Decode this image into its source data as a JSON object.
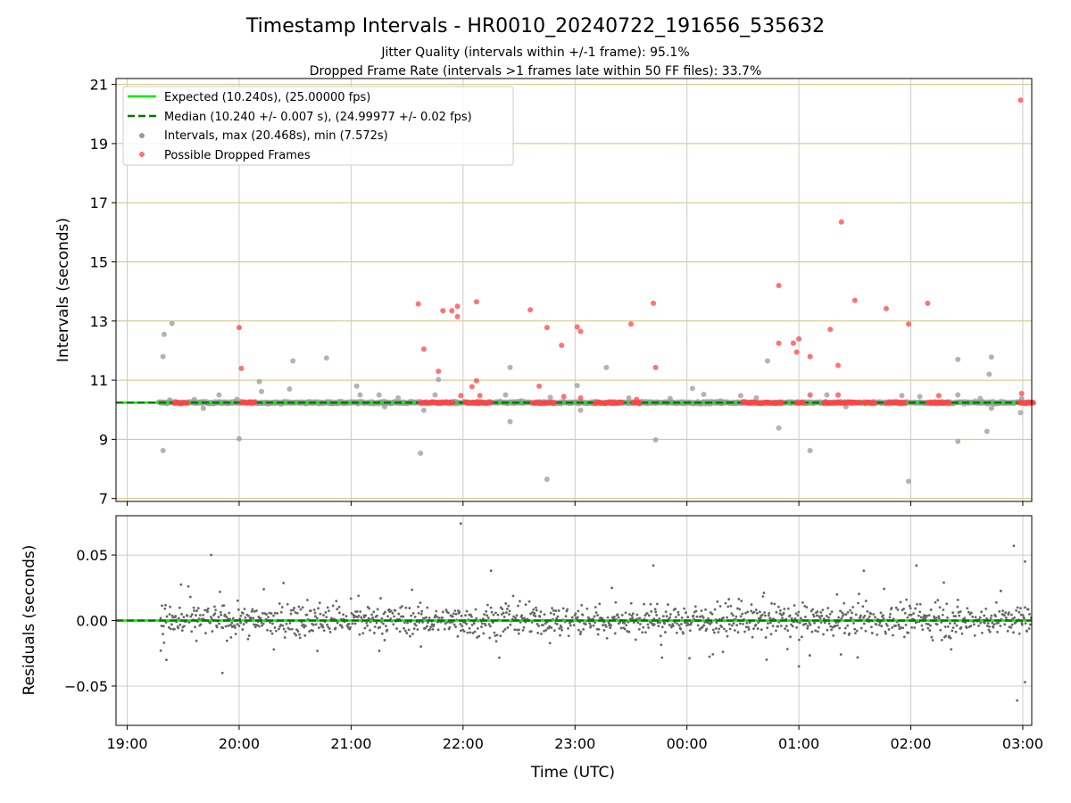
{
  "chart_data": [
    {
      "type": "scatter",
      "title": "Timestamp Intervals - HR0010_20240722_191656_535632",
      "subtitle_lines": [
        "Jitter Quality (intervals within +/-1 frame): 95.1%",
        "Dropped Frame Rate (intervals >1 frames late within 50 FF files): 33.7%"
      ],
      "ylabel": "Intervals (seconds)",
      "ylim": [
        6.9,
        21.2
      ],
      "yticks": [
        7,
        9,
        11,
        13,
        15,
        17,
        19,
        21
      ],
      "ytick_labels": [
        "7",
        "9",
        "11",
        "13",
        "15",
        "17",
        "19",
        "21"
      ],
      "xlim": [
        -0.1,
        8.08
      ],
      "xticks": [
        0,
        1,
        2,
        3,
        4,
        5,
        6,
        7,
        8
      ],
      "grid": true,
      "legend_position": "upper-left",
      "legend": [
        "Expected (10.240s), (25.00000 fps)",
        "Median (10.240 +/- 0.007 s), (24.99977 +/- 0.02 fps)",
        "Intervals, max (20.468s), min (7.572s)",
        "Possible Dropped Frames"
      ],
      "expected": 10.24,
      "median": 10.24,
      "band_runs": [
        [
          0.28,
          8.1
        ]
      ],
      "dropped_runs": [
        [
          0.42,
          0.55
        ],
        [
          1.02,
          1.15
        ],
        [
          2.62,
          2.92
        ],
        [
          3.02,
          3.25
        ],
        [
          3.62,
          3.82
        ],
        [
          4.18,
          4.42
        ],
        [
          4.52,
          4.58
        ],
        [
          5.5,
          5.85
        ],
        [
          5.98,
          6.05
        ],
        [
          6.22,
          6.55
        ],
        [
          6.58,
          6.68
        ],
        [
          6.78,
          6.95
        ],
        [
          7.15,
          7.35
        ],
        [
          7.97,
          8.1
        ]
      ],
      "points": [
        {
          "x": 0.32,
          "y": 8.62
        },
        {
          "x": 0.32,
          "y": 11.8
        },
        {
          "x": 0.33,
          "y": 12.55
        },
        {
          "x": 0.4,
          "y": 12.92
        },
        {
          "x": 0.38,
          "y": 10.33
        },
        {
          "x": 0.6,
          "y": 10.35
        },
        {
          "x": 0.68,
          "y": 10.05
        },
        {
          "x": 0.82,
          "y": 10.5
        },
        {
          "x": 0.98,
          "y": 10.35
        },
        {
          "x": 1.0,
          "y": 9.02
        },
        {
          "x": 1.18,
          "y": 10.95
        },
        {
          "x": 1.2,
          "y": 10.62
        },
        {
          "x": 1.45,
          "y": 10.7
        },
        {
          "x": 1.48,
          "y": 11.65
        },
        {
          "x": 1.78,
          "y": 11.75
        },
        {
          "x": 2.05,
          "y": 10.8
        },
        {
          "x": 2.08,
          "y": 10.5
        },
        {
          "x": 2.25,
          "y": 10.5
        },
        {
          "x": 2.3,
          "y": 10.1
        },
        {
          "x": 2.42,
          "y": 10.4
        },
        {
          "x": 2.62,
          "y": 8.53
        },
        {
          "x": 2.65,
          "y": 9.98
        },
        {
          "x": 2.75,
          "y": 10.5
        },
        {
          "x": 2.78,
          "y": 11.02
        },
        {
          "x": 3.38,
          "y": 10.5
        },
        {
          "x": 3.42,
          "y": 9.6
        },
        {
          "x": 3.42,
          "y": 11.43
        },
        {
          "x": 3.52,
          "y": 10.3
        },
        {
          "x": 3.75,
          "y": 7.65
        },
        {
          "x": 3.78,
          "y": 10.42
        },
        {
          "x": 4.02,
          "y": 10.82
        },
        {
          "x": 4.05,
          "y": 9.98
        },
        {
          "x": 4.28,
          "y": 11.43
        },
        {
          "x": 4.48,
          "y": 10.4
        },
        {
          "x": 4.72,
          "y": 8.98
        },
        {
          "x": 4.85,
          "y": 10.38
        },
        {
          "x": 5.05,
          "y": 10.72
        },
        {
          "x": 5.15,
          "y": 10.52
        },
        {
          "x": 5.3,
          "y": 10.3
        },
        {
          "x": 5.48,
          "y": 10.48
        },
        {
          "x": 5.62,
          "y": 10.4
        },
        {
          "x": 5.72,
          "y": 11.65
        },
        {
          "x": 5.82,
          "y": 9.38
        },
        {
          "x": 6.1,
          "y": 8.62
        },
        {
          "x": 6.25,
          "y": 10.5
        },
        {
          "x": 6.42,
          "y": 10.1
        },
        {
          "x": 6.92,
          "y": 10.48
        },
        {
          "x": 6.98,
          "y": 7.58
        },
        {
          "x": 7.08,
          "y": 10.45
        },
        {
          "x": 7.42,
          "y": 11.7
        },
        {
          "x": 7.42,
          "y": 8.93
        },
        {
          "x": 7.42,
          "y": 10.5
        },
        {
          "x": 7.62,
          "y": 10.38
        },
        {
          "x": 7.68,
          "y": 9.27
        },
        {
          "x": 7.7,
          "y": 11.2
        },
        {
          "x": 7.72,
          "y": 11.78
        },
        {
          "x": 7.72,
          "y": 10.05
        },
        {
          "x": 7.98,
          "y": 9.9
        },
        {
          "x": 7.99,
          "y": 10.38
        }
      ],
      "dropped_points": [
        {
          "x": 1.0,
          "y": 12.78
        },
        {
          "x": 1.02,
          "y": 11.4
        },
        {
          "x": 2.6,
          "y": 13.58
        },
        {
          "x": 2.65,
          "y": 12.05
        },
        {
          "x": 2.78,
          "y": 11.3
        },
        {
          "x": 2.82,
          "y": 13.35
        },
        {
          "x": 2.9,
          "y": 13.35
        },
        {
          "x": 2.95,
          "y": 13.5
        },
        {
          "x": 2.95,
          "y": 13.15
        },
        {
          "x": 2.98,
          "y": 10.48
        },
        {
          "x": 3.08,
          "y": 10.78
        },
        {
          "x": 3.12,
          "y": 13.65
        },
        {
          "x": 3.12,
          "y": 10.98
        },
        {
          "x": 3.15,
          "y": 10.48
        },
        {
          "x": 3.6,
          "y": 13.38
        },
        {
          "x": 3.68,
          "y": 10.8
        },
        {
          "x": 3.75,
          "y": 12.78
        },
        {
          "x": 3.88,
          "y": 12.18
        },
        {
          "x": 3.9,
          "y": 10.45
        },
        {
          "x": 4.02,
          "y": 12.8
        },
        {
          "x": 4.05,
          "y": 12.65
        },
        {
          "x": 4.05,
          "y": 10.4
        },
        {
          "x": 4.5,
          "y": 12.9
        },
        {
          "x": 4.55,
          "y": 10.35
        },
        {
          "x": 4.7,
          "y": 13.6
        },
        {
          "x": 4.72,
          "y": 11.43
        },
        {
          "x": 5.82,
          "y": 14.2
        },
        {
          "x": 5.82,
          "y": 12.25
        },
        {
          "x": 5.95,
          "y": 12.25
        },
        {
          "x": 5.98,
          "y": 11.95
        },
        {
          "x": 6.0,
          "y": 12.4
        },
        {
          "x": 6.1,
          "y": 11.8
        },
        {
          "x": 6.1,
          "y": 10.5
        },
        {
          "x": 6.28,
          "y": 12.72
        },
        {
          "x": 6.35,
          "y": 11.5
        },
        {
          "x": 6.35,
          "y": 10.5
        },
        {
          "x": 6.38,
          "y": 16.35
        },
        {
          "x": 6.5,
          "y": 13.7
        },
        {
          "x": 6.78,
          "y": 13.42
        },
        {
          "x": 6.98,
          "y": 12.9
        },
        {
          "x": 7.15,
          "y": 13.6
        },
        {
          "x": 7.25,
          "y": 10.48
        },
        {
          "x": 7.98,
          "y": 20.47
        },
        {
          "x": 7.99,
          "y": 10.55
        }
      ]
    },
    {
      "type": "scatter",
      "xlabel": "Time (UTC)",
      "ylabel": "Residuals (seconds)",
      "ylim": [
        -0.08,
        0.08
      ],
      "yticks": [
        -0.05,
        0.0,
        0.05
      ],
      "ytick_labels": [
        "−0.05",
        "0.00",
        "0.05"
      ],
      "xlim": [
        -0.1,
        8.08
      ],
      "xticks": [
        0,
        1,
        2,
        3,
        4,
        5,
        6,
        7,
        8
      ],
      "xtick_labels": [
        "19:00",
        "20:00",
        "21:00",
        "22:00",
        "23:00",
        "00:00",
        "01:00",
        "02:00",
        "03:00"
      ],
      "grid": true,
      "reference": 0.0,
      "x_start": 0.3,
      "x_end": 8.08,
      "point_count": 1300,
      "outliers": [
        {
          "x": 0.3,
          "y": -0.023
        },
        {
          "x": 0.35,
          "y": -0.03
        },
        {
          "x": 0.75,
          "y": 0.05
        },
        {
          "x": 0.85,
          "y": -0.04
        },
        {
          "x": 2.98,
          "y": 0.074
        },
        {
          "x": 3.25,
          "y": 0.038
        },
        {
          "x": 4.7,
          "y": 0.042
        },
        {
          "x": 6.0,
          "y": -0.035
        },
        {
          "x": 6.58,
          "y": 0.038
        },
        {
          "x": 7.05,
          "y": 0.042
        },
        {
          "x": 7.92,
          "y": 0.057
        },
        {
          "x": 7.95,
          "y": -0.061
        },
        {
          "x": 8.02,
          "y": 0.045
        },
        {
          "x": 8.02,
          "y": -0.047
        }
      ]
    }
  ],
  "colors": {
    "expected": "#00ee00",
    "median": "#007a00",
    "intervals": "#999999",
    "dropped": "#ff4444",
    "hgrid_top": "#d4c27a",
    "grid": "#cccccc",
    "residual": "#666666"
  }
}
